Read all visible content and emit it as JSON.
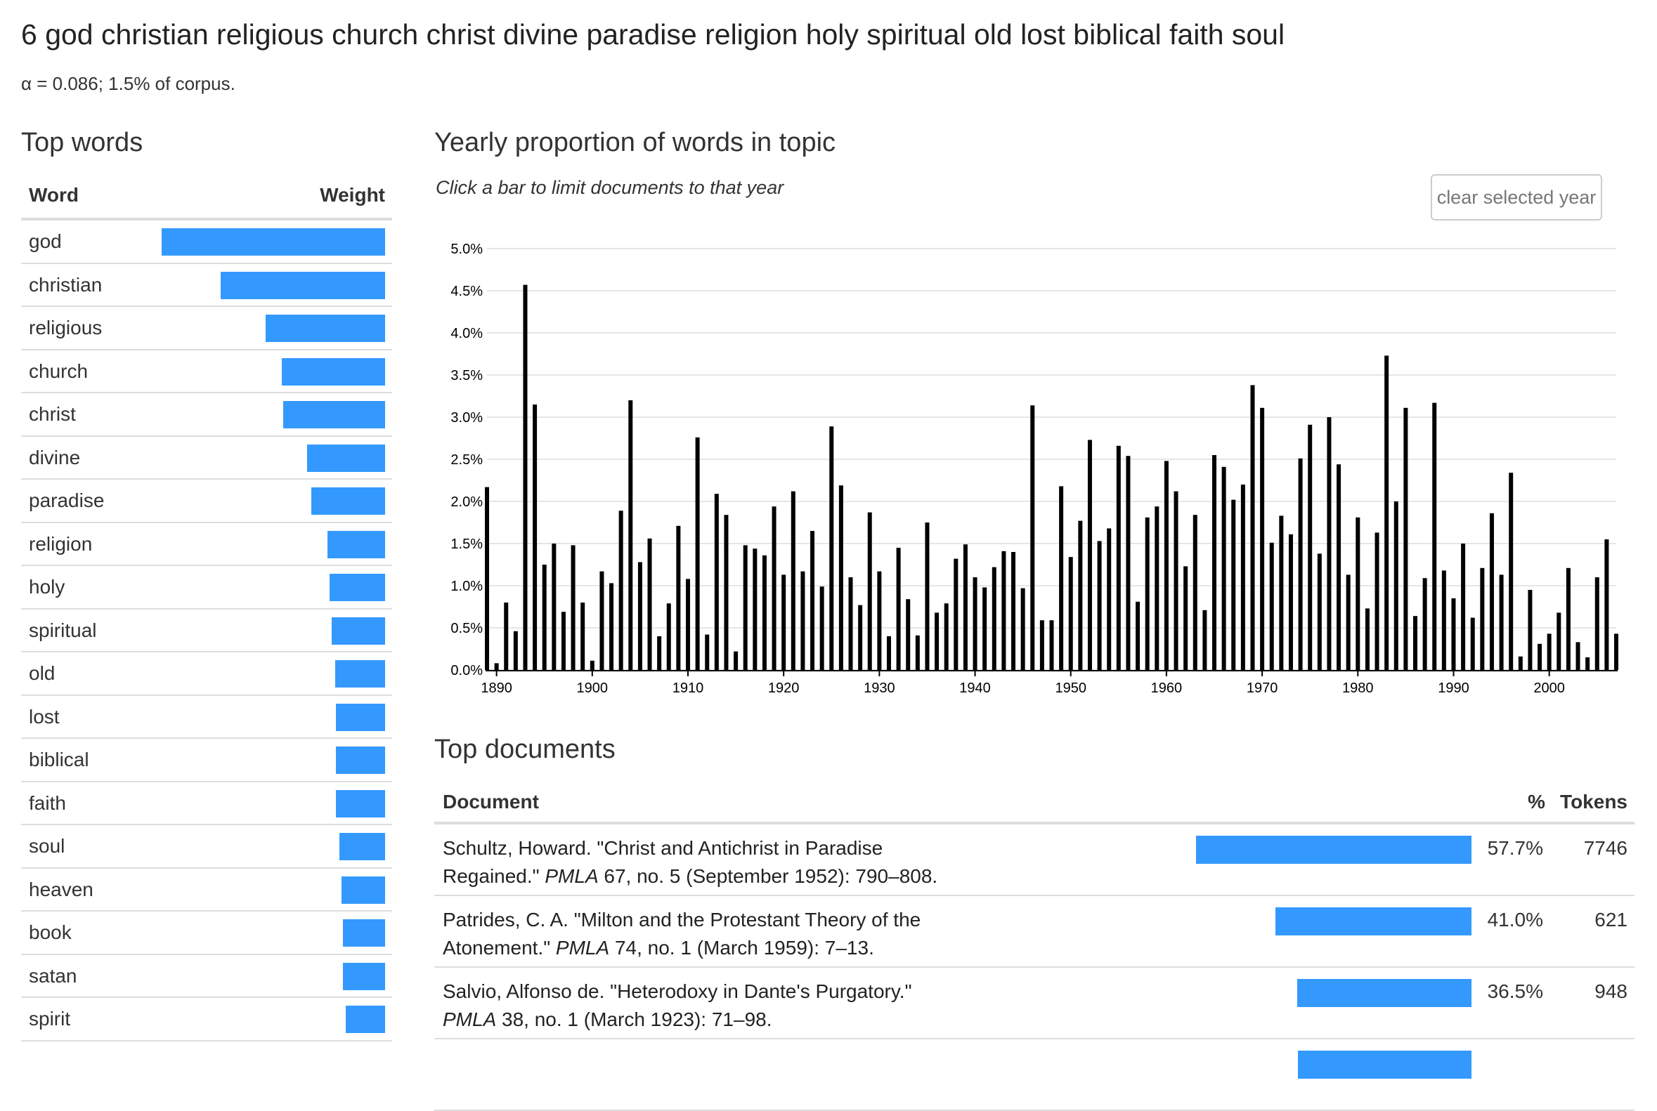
{
  "header": {
    "title": "6 god christian religious church christ divine paradise religion holy spiritual old lost biblical faith soul",
    "subtitle": "α = 0.086; 1.5% of corpus."
  },
  "top_words": {
    "heading": "Top words",
    "col_word": "Word",
    "col_weight": "Weight",
    "max_weight": 1.0,
    "rows": [
      {
        "word": "god",
        "weight": 1.0
      },
      {
        "word": "christian",
        "weight": 0.737
      },
      {
        "word": "religious",
        "weight": 0.534
      },
      {
        "word": "church",
        "weight": 0.462
      },
      {
        "word": "christ",
        "weight": 0.457
      },
      {
        "word": "divine",
        "weight": 0.348
      },
      {
        "word": "paradise",
        "weight": 0.329
      },
      {
        "word": "religion",
        "weight": 0.257
      },
      {
        "word": "holy",
        "weight": 0.248
      },
      {
        "word": "spiritual",
        "weight": 0.24
      },
      {
        "word": "old",
        "weight": 0.224
      },
      {
        "word": "lost",
        "weight": 0.219
      },
      {
        "word": "biblical",
        "weight": 0.219
      },
      {
        "word": "faith",
        "weight": 0.219
      },
      {
        "word": "soul",
        "weight": 0.205
      },
      {
        "word": "heaven",
        "weight": 0.195
      },
      {
        "word": "book",
        "weight": 0.19
      },
      {
        "word": "satan",
        "weight": 0.19
      },
      {
        "word": "spirit",
        "weight": 0.176
      }
    ]
  },
  "chart_section": {
    "heading": "Yearly proportion of words in topic",
    "note": "Click a bar to limit documents to that year",
    "clear_label": "clear selected year"
  },
  "chart_data": {
    "type": "bar",
    "title": "Yearly proportion of words in topic",
    "xlabel": "",
    "ylabel": "",
    "ylim": [
      0,
      5.0
    ],
    "xlim": [
      1889,
      2007
    ],
    "y_ticks": [
      "0.0%",
      "0.5%",
      "1.0%",
      "1.5%",
      "2.0%",
      "2.5%",
      "3.0%",
      "3.5%",
      "4.0%",
      "4.5%",
      "5.0%"
    ],
    "x_ticks": [
      "1890",
      "1900",
      "1910",
      "1920",
      "1930",
      "1940",
      "1950",
      "1960",
      "1970",
      "1980",
      "1990",
      "2000"
    ],
    "grid": true,
    "unit": "%",
    "x": [
      1889,
      1890,
      1891,
      1892,
      1893,
      1894,
      1895,
      1896,
      1897,
      1898,
      1899,
      1900,
      1901,
      1902,
      1903,
      1904,
      1905,
      1906,
      1907,
      1908,
      1909,
      1910,
      1911,
      1912,
      1913,
      1914,
      1915,
      1916,
      1917,
      1918,
      1919,
      1920,
      1921,
      1922,
      1923,
      1924,
      1925,
      1926,
      1927,
      1928,
      1929,
      1930,
      1931,
      1932,
      1933,
      1934,
      1935,
      1936,
      1937,
      1938,
      1939,
      1940,
      1941,
      1942,
      1943,
      1944,
      1945,
      1946,
      1947,
      1948,
      1949,
      1950,
      1951,
      1952,
      1953,
      1954,
      1955,
      1956,
      1957,
      1958,
      1959,
      1960,
      1961,
      1962,
      1963,
      1964,
      1965,
      1966,
      1967,
      1968,
      1969,
      1970,
      1971,
      1972,
      1973,
      1974,
      1975,
      1976,
      1977,
      1978,
      1979,
      1980,
      1981,
      1982,
      1983,
      1984,
      1985,
      1986,
      1987,
      1988,
      1989,
      1990,
      1991,
      1992,
      1993,
      1994,
      1995,
      1996,
      1997,
      1998,
      1999,
      2000,
      2001,
      2002,
      2003,
      2004,
      2005,
      2006,
      2007
    ],
    "values": [
      2.17,
      0.08,
      0.8,
      0.46,
      4.57,
      3.15,
      1.25,
      1.5,
      0.69,
      1.48,
      0.8,
      0.11,
      1.17,
      1.03,
      1.89,
      3.2,
      1.28,
      1.56,
      0.4,
      0.79,
      1.71,
      1.08,
      2.76,
      0.42,
      2.09,
      1.84,
      0.22,
      1.48,
      1.44,
      1.36,
      1.94,
      1.13,
      2.12,
      1.17,
      1.65,
      0.99,
      2.89,
      2.19,
      1.1,
      0.77,
      1.87,
      1.17,
      0.4,
      1.45,
      0.84,
      0.41,
      1.75,
      0.68,
      0.79,
      1.32,
      1.49,
      1.1,
      0.98,
      1.22,
      1.41,
      1.4,
      0.97,
      3.14,
      0.59,
      0.59,
      2.18,
      1.34,
      1.77,
      2.73,
      1.53,
      1.68,
      2.66,
      2.54,
      0.81,
      1.81,
      1.94,
      2.48,
      2.12,
      1.23,
      1.84,
      0.71,
      2.55,
      2.41,
      2.02,
      2.2,
      3.38,
      3.11,
      1.51,
      1.83,
      1.61,
      2.51,
      2.91,
      1.38,
      3.0,
      2.44,
      1.13,
      1.81,
      0.73,
      1.63,
      3.73,
      2.0,
      3.11,
      0.64,
      1.09,
      3.17,
      1.18,
      0.85,
      1.5,
      0.62,
      1.21,
      1.86,
      1.13,
      2.34,
      0.16,
      0.95,
      0.31,
      0.43,
      0.68,
      1.21,
      0.33,
      0.15,
      1.1,
      1.55,
      0.43
    ]
  },
  "top_docs": {
    "heading": "Top documents",
    "col_doc": "Document",
    "col_pct": "%",
    "col_tokens": "Tokens",
    "rows": [
      {
        "line1": "Schultz, Howard. \"Christ and Antichrist in Paradise",
        "line2_pre": "Regained.\" ",
        "journal": "PMLA",
        "line2_post": " 67, no. 5 (September 1952): 790–808.",
        "pct": "57.7%",
        "pct_value": 57.7,
        "tokens": "7746"
      },
      {
        "line1": "Patrides, C. A. \"Milton and the Protestant Theory of the",
        "line2_pre": "Atonement.\" ",
        "journal": "PMLA",
        "line2_post": " 74, no. 1 (March 1959): 7–13.",
        "pct": "41.0%",
        "pct_value": 41.0,
        "tokens": "621"
      },
      {
        "line1": "Salvio, Alfonso de. \"Heterodoxy in Dante's Purgatory.\"",
        "line2_pre": "",
        "journal": "PMLA",
        "line2_post": " 38, no. 1 (March 1923): 71–98.",
        "pct": "36.5%",
        "pct_value": 36.5,
        "tokens": "948"
      },
      {
        "line1": "",
        "line2_pre": "",
        "journal": "",
        "line2_post": "",
        "pct": "",
        "pct_value": 36.4,
        "tokens": ""
      }
    ]
  },
  "colors": {
    "accent_bar": "#3399ff",
    "chart_bar": "#000000",
    "grid": "#dddddd"
  }
}
